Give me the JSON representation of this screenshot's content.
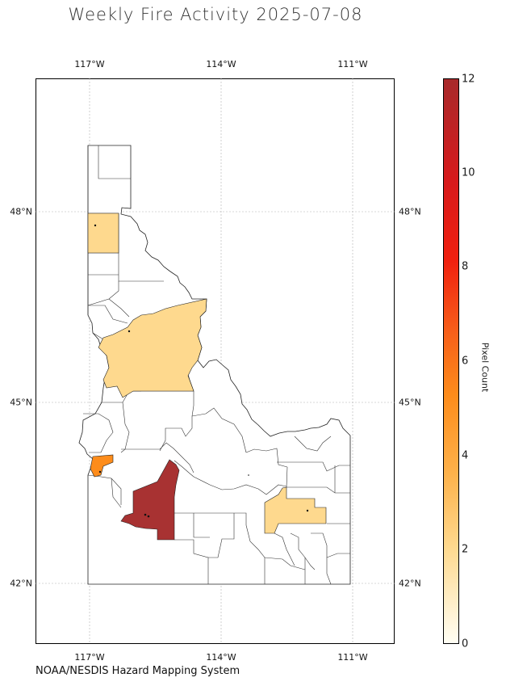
{
  "title": "Weekly Fire Activity 2025-07-08",
  "credit": "NOAA/NESDIS Hazard Mapping System",
  "lon_ticks": [
    "117°W",
    "114°W",
    "111°W"
  ],
  "lat_ticks": [
    "48°N",
    "45°N",
    "42°N"
  ],
  "colorbar": {
    "label": "Pixel Count",
    "ticks": [
      "0",
      "2",
      "4",
      "6",
      "8",
      "10",
      "12"
    ]
  },
  "chart_data": {
    "type": "choropleth",
    "region": "Idaho counties",
    "title": "Weekly Fire Activity 2025-07-08",
    "colorbar_label": "Pixel Count",
    "colorbar_range": [
      0,
      12
    ],
    "grid": true,
    "highlighted_counties": [
      {
        "value": 2
      },
      {
        "value": 2
      },
      {
        "value": 2
      },
      {
        "value": 5
      },
      {
        "value": 12
      }
    ]
  }
}
